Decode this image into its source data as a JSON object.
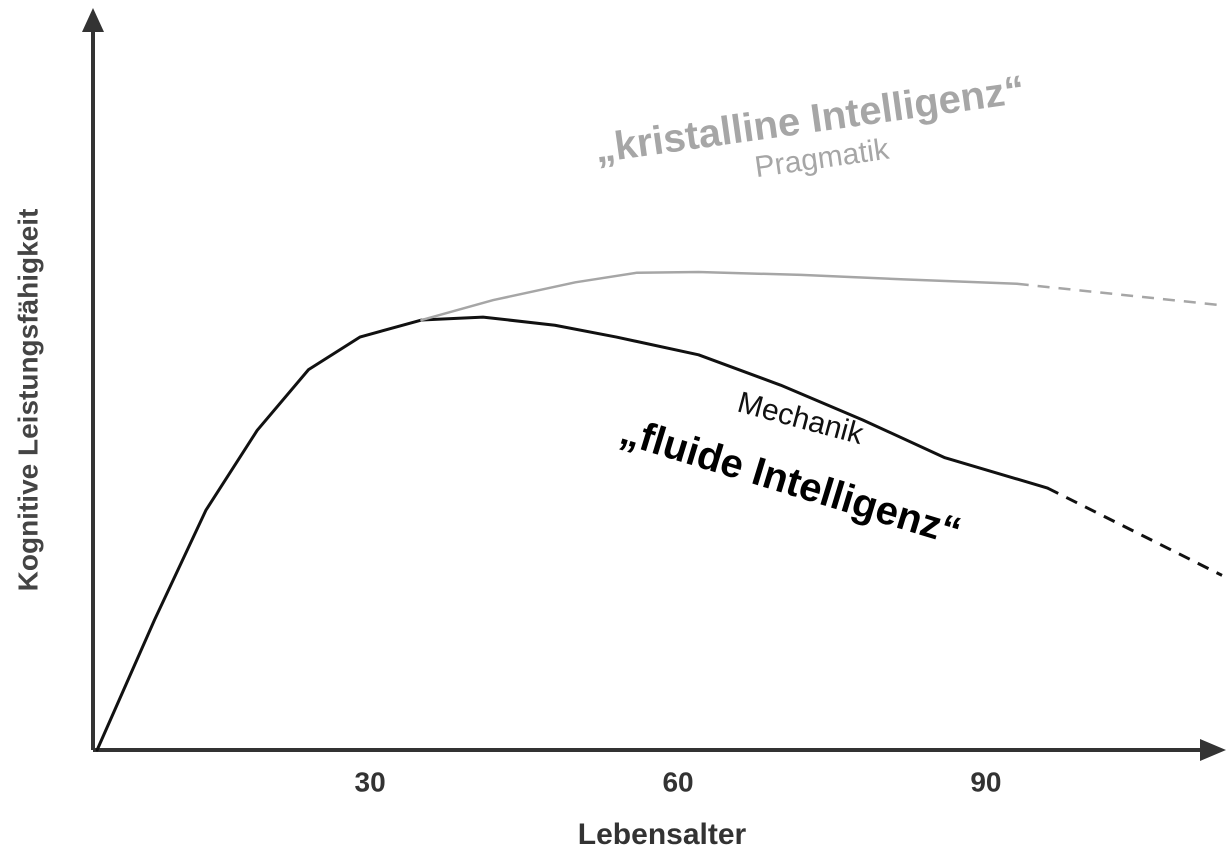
{
  "chart_data": {
    "type": "line",
    "xlabel": "Lebensalter",
    "ylabel": "Kognitive Leistungsfähigkeit",
    "xlim": [
      3,
      113
    ],
    "ylim": [
      0,
      100
    ],
    "xticks": [
      30,
      60,
      90
    ],
    "grid": false,
    "series": [
      {
        "color": "#111111",
        "dashed": false,
        "x": [
          3.4,
          9,
          14,
          19,
          24,
          29,
          35,
          41,
          48,
          54,
          62,
          70,
          78,
          86,
          96
        ],
        "values": [
          0,
          17.6,
          32.4,
          43.2,
          51.4,
          55.8,
          58.1,
          58.5,
          57.4,
          55.8,
          53.4,
          49.3,
          44.6,
          39.5,
          35.4
        ]
      },
      {
        "color": "#111111",
        "dashed": true,
        "x": [
          96,
          113
        ],
        "values": [
          35.4,
          23.6
        ]
      },
      {
        "color": "#a6a6a6",
        "dashed": false,
        "x": [
          35,
          42,
          50,
          56,
          62,
          72,
          82,
          93
        ],
        "values": [
          58.1,
          60.8,
          63.2,
          64.5,
          64.6,
          64.2,
          63.6,
          63.0
        ]
      },
      {
        "color": "#a6a6a6",
        "dashed": true,
        "x": [
          93,
          113
        ],
        "values": [
          63.0,
          60.1
        ]
      }
    ],
    "annotations": [
      {
        "text": "„kristalline Intelligenz“",
        "color": "#a6a6a6"
      },
      {
        "text": "Pragmatik",
        "color": "#a6a6a6"
      },
      {
        "text": "Mechanik",
        "color": "#111111"
      },
      {
        "text": "„fluide Intelligenz“",
        "color": "#000000"
      }
    ]
  }
}
